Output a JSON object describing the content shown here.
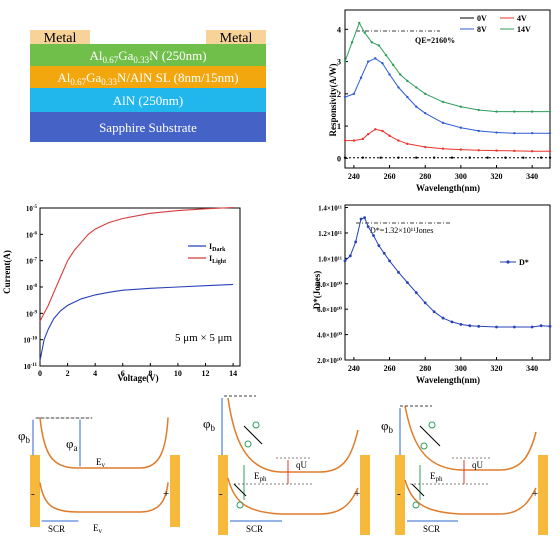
{
  "structure": {
    "layers": [
      {
        "text": "Metal",
        "color": "#f7d39a"
      },
      {
        "text": "Metal",
        "color": "#f7d39a"
      },
      {
        "text": "Al0.67Ga0.33N  (250nm)",
        "color": "#6fbf4a"
      },
      {
        "text": "Al0.67Ga0.33N/AlN SL  (8nm/15nm)",
        "color": "#f2a70f"
      },
      {
        "text": "AlN  (250nm)",
        "color": "#22b7ec"
      },
      {
        "text": "Sapphire Substrate",
        "color": "#4563c7"
      }
    ]
  },
  "panels": {
    "responsivity_annot": "QE=2160%",
    "detectivity_annot": "D*=1.32×10¹¹Jones",
    "iv_annot": "5 μm × 5 μm"
  },
  "chart_data": [
    {
      "type": "line",
      "xlabel": "Wavelength(nm)",
      "ylabel": "Responsivity(A/W)",
      "xlim": [
        235,
        350
      ],
      "ylim": [
        -0.3,
        4.6
      ],
      "xticks": [
        240,
        260,
        280,
        300,
        320,
        340
      ],
      "yticks": [
        0,
        1,
        2,
        3,
        4
      ],
      "legend_position": "top-right",
      "series": [
        {
          "name": "0V",
          "color": "#000000",
          "x": [
            235,
            245,
            255,
            265,
            275,
            285,
            295,
            305,
            315,
            325,
            335,
            345,
            350
          ],
          "y": [
            0.02,
            0.02,
            0.02,
            0.02,
            0.02,
            0.02,
            0.02,
            0.02,
            0.02,
            0.02,
            0.02,
            0.02,
            0.02
          ]
        },
        {
          "name": "4V",
          "color": "#e8352e",
          "x": [
            235,
            240,
            245,
            248,
            252,
            256,
            260,
            265,
            270,
            280,
            290,
            300,
            310,
            320,
            330,
            340,
            350
          ],
          "y": [
            0.55,
            0.55,
            0.6,
            0.75,
            0.9,
            0.85,
            0.7,
            0.55,
            0.45,
            0.35,
            0.3,
            0.27,
            0.25,
            0.24,
            0.23,
            0.22,
            0.22
          ]
        },
        {
          "name": "8V",
          "color": "#2f5bd5",
          "x": [
            235,
            240,
            244,
            248,
            252,
            256,
            260,
            265,
            270,
            275,
            280,
            290,
            300,
            310,
            320,
            330,
            340,
            350
          ],
          "y": [
            1.9,
            2.0,
            2.5,
            3.0,
            3.1,
            2.95,
            2.6,
            2.2,
            1.9,
            1.6,
            1.4,
            1.1,
            0.95,
            0.85,
            0.8,
            0.78,
            0.78,
            0.78
          ]
        },
        {
          "name": "14V",
          "color": "#2e9e5c",
          "x": [
            235,
            239,
            243,
            246,
            250,
            254,
            258,
            262,
            266,
            270,
            275,
            280,
            290,
            300,
            310,
            320,
            330,
            340,
            350
          ],
          "y": [
            3.0,
            3.6,
            4.2,
            3.9,
            3.6,
            3.5,
            3.2,
            2.9,
            2.6,
            2.4,
            2.2,
            2.0,
            1.75,
            1.6,
            1.5,
            1.45,
            1.45,
            1.45,
            1.45
          ]
        }
      ]
    },
    {
      "type": "line",
      "xlabel": "Voltage(V)",
      "ylabel": "Current(A)",
      "xlim": [
        0,
        14.5
      ],
      "ylim_log10": [
        -11,
        -5
      ],
      "xticks": [
        0,
        2,
        4,
        6,
        8,
        10,
        12,
        14
      ],
      "yticks_log10": [
        -11,
        -10,
        -9,
        -8,
        -7,
        -6,
        -5
      ],
      "legend_position": "right",
      "series": [
        {
          "name": "IDark",
          "color": "#2741b8",
          "x": [
            0,
            0.3,
            0.6,
            1,
            1.5,
            2,
            3,
            4,
            5,
            6,
            8,
            10,
            12,
            14
          ],
          "y_log10": [
            -10.8,
            -10,
            -9.6,
            -9.2,
            -8.9,
            -8.7,
            -8.45,
            -8.3,
            -8.2,
            -8.12,
            -8.05,
            -8.0,
            -7.95,
            -7.9
          ]
        },
        {
          "name": "ILight",
          "color": "#d83a3a",
          "x": [
            0,
            0.3,
            0.6,
            1,
            1.5,
            2,
            2.5,
            3,
            3.5,
            4,
            5,
            6,
            8,
            10,
            12,
            14
          ],
          "y_log10": [
            -9.3,
            -9.0,
            -8.7,
            -8.2,
            -7.6,
            -7.0,
            -6.6,
            -6.3,
            -6.0,
            -5.8,
            -5.55,
            -5.4,
            -5.2,
            -5.1,
            -5.03,
            -4.98
          ]
        }
      ]
    },
    {
      "type": "line",
      "xlabel": "Wavelength(nm)",
      "ylabel": "D*(Jones)",
      "xlim": [
        235,
        350
      ],
      "ylim": [
        2.0,
        14.2
      ],
      "ytick_unit": "×10^10",
      "xticks": [
        240,
        260,
        280,
        300,
        320,
        340
      ],
      "ytick_labels": [
        "2.0×10¹⁰",
        "4.0×10¹⁰",
        "6.0×10¹⁰",
        "8.0×10¹⁰",
        "1.0×10¹¹",
        "1.2×10¹¹",
        "1.4×10¹¹"
      ],
      "ytick_values": [
        2,
        4,
        6,
        8,
        10,
        12,
        14
      ],
      "legend_position": "right",
      "series": [
        {
          "name": "D*",
          "color": "#2741b8",
          "x": [
            235,
            238,
            241,
            244,
            246,
            248,
            251,
            254,
            257,
            260,
            265,
            270,
            275,
            280,
            285,
            290,
            295,
            300,
            305,
            310,
            320,
            330,
            340,
            345,
            350
          ],
          "y": [
            9.8,
            10.2,
            11.3,
            13.1,
            13.2,
            12.5,
            11.8,
            11.0,
            10.4,
            9.8,
            8.9,
            8.1,
            7.3,
            6.5,
            5.8,
            5.3,
            5.0,
            4.8,
            4.7,
            4.65,
            4.6,
            4.6,
            4.6,
            4.7,
            4.65
          ]
        }
      ]
    }
  ],
  "band_diagrams": {
    "phi_b": "φb",
    "phi_a": "φa",
    "ev": "Ev",
    "scr": "SCR",
    "eph": "Eph",
    "qu": "qU",
    "minus": "-",
    "plus": "+",
    "hole": "⊕"
  }
}
